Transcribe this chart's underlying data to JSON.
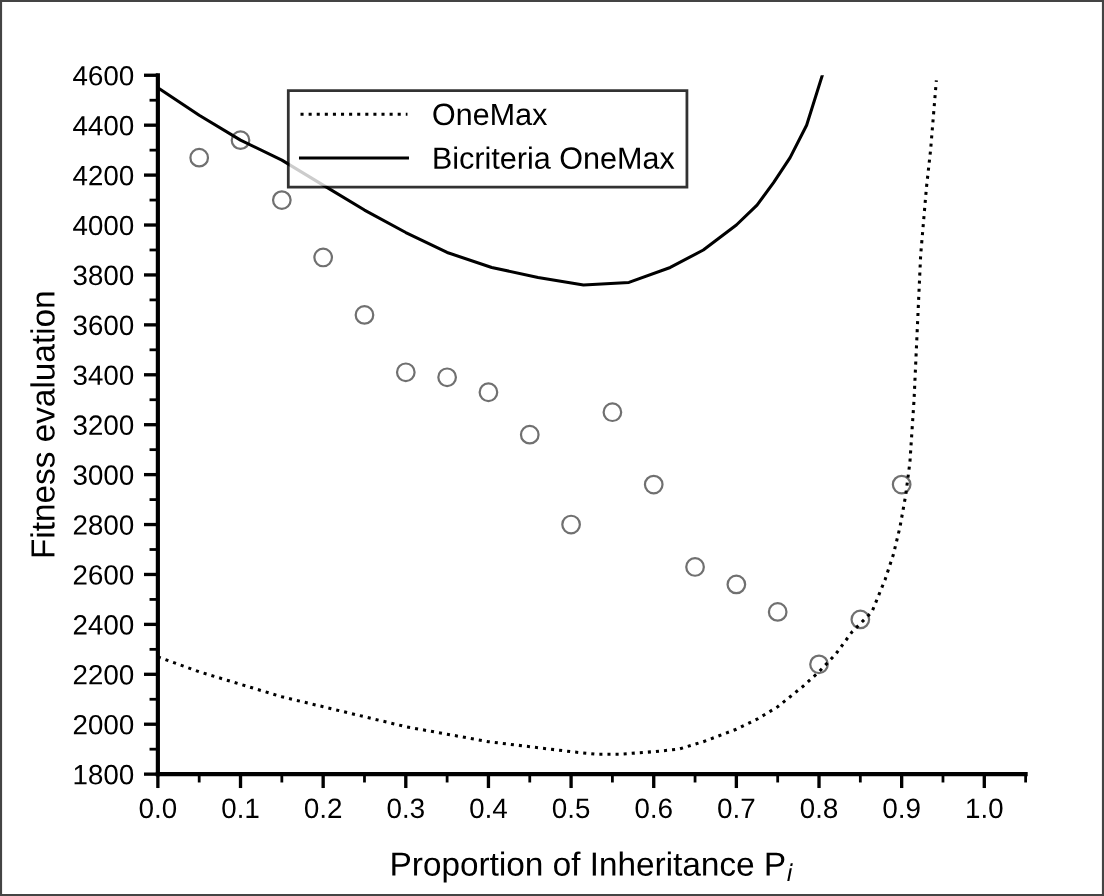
{
  "chart_data": {
    "type": "line",
    "xlabel": "Proportion of Inheritance P$_{i}$",
    "ylabel": "Fitness evaluation",
    "xlim": [
      0,
      1.05
    ],
    "xticks": [
      {
        "value": 0.0,
        "label": "0.0"
      },
      0.1,
      0.2,
      0.3,
      0.4,
      0.5,
      0.6,
      0.7,
      0.8,
      0.9,
      {
        "value": 1.0,
        "label": "1.0"
      }
    ],
    "ylim": [
      1800,
      4600
    ],
    "yticks": [
      1800,
      2000,
      2200,
      2400,
      2600,
      2800,
      3000,
      3200,
      3400,
      3600,
      3800,
      4000,
      4200,
      4400,
      4600
    ],
    "grid": false,
    "legend": "top",
    "series": [
      {
        "name": "OneMax",
        "line_style": "dotted",
        "color": "#000000",
        "x": [
          0,
          0.05,
          0.1,
          0.15,
          0.2,
          0.25,
          0.3,
          0.35,
          0.4,
          0.45,
          0.5,
          0.53,
          0.56,
          0.6,
          0.63,
          0.66,
          0.7,
          0.725,
          0.75,
          0.78,
          0.8,
          0.82,
          0.84,
          0.864,
          0.88,
          0.89,
          0.898,
          0.905,
          0.91,
          0.915,
          0.923,
          0.93,
          0.935,
          0.942
        ],
        "values": [
          2270,
          2210,
          2160,
          2110,
          2070,
          2030,
          1990,
          1960,
          1930,
          1910,
          1890,
          1880,
          1880,
          1890,
          1900,
          1930,
          1980,
          2020,
          2070,
          2150,
          2210,
          2280,
          2370,
          2450,
          2580,
          2680,
          2790,
          2920,
          3050,
          3300,
          3880,
          4150,
          4300,
          4580
        ]
      },
      {
        "name": "Bicriteria OneMax",
        "line_style": "solid",
        "color": "#000000",
        "x": [
          0,
          0.05,
          0.1,
          0.15,
          0.2,
          0.25,
          0.3,
          0.35,
          0.404,
          0.46,
          0.515,
          0.57,
          0.62,
          0.66,
          0.7,
          0.725,
          0.745,
          0.765,
          0.785,
          0.804
        ],
        "values": [
          4550,
          4440,
          4340,
          4260,
          4160,
          4060,
          3970,
          3890,
          3830,
          3790,
          3760,
          3770,
          3830,
          3900,
          4000,
          4080,
          4170,
          4270,
          4400,
          4600
        ]
      },
      {
        "type": "scatter",
        "marker": "circle",
        "color": "#707070",
        "x": [
          0.05,
          0.1,
          0.15,
          0.2,
          0.25,
          0.3,
          0.35,
          0.4,
          0.45,
          0.5,
          0.55,
          0.6,
          0.65,
          0.7,
          0.75,
          0.8,
          0.85,
          0.9
        ],
        "values": [
          4270,
          4340,
          4100,
          3870,
          3640,
          3410,
          3390,
          3330,
          3160,
          2800,
          3250,
          2960,
          2630,
          2560,
          2450,
          2240,
          2420,
          2960
        ]
      }
    ]
  }
}
